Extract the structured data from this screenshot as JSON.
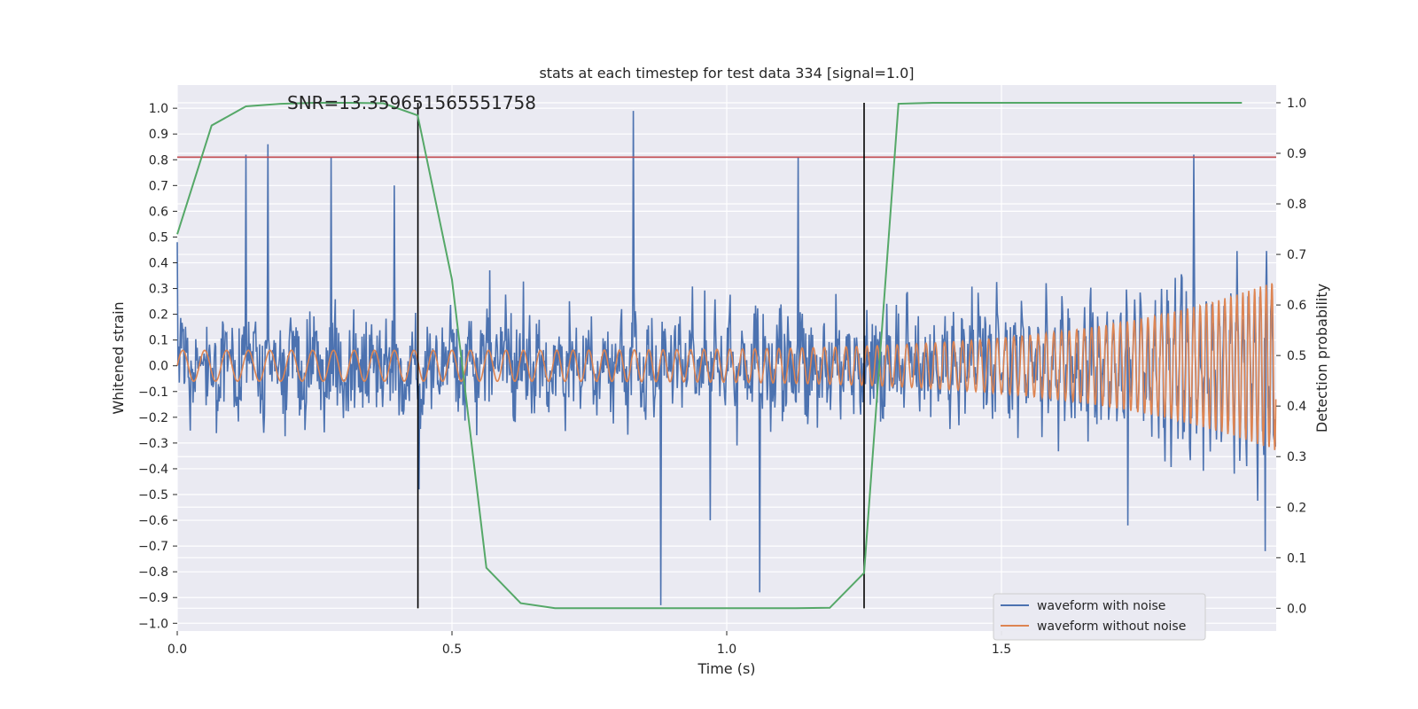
{
  "chart_data": {
    "type": "line",
    "title": "stats at each timestep for test data 334 [signal=1.0]",
    "xlabel": "Time (s)",
    "ylabel": "Whitened strain",
    "y2label": "Detection probability",
    "xlim": [
      0.0,
      2.0
    ],
    "ylim": [
      -1.03,
      1.09
    ],
    "y2lim": [
      -0.045,
      1.035
    ],
    "x_ticks": [
      "0.0",
      "0.5",
      "1.0",
      "1.5"
    ],
    "y_ticks": [
      "−1.0",
      "−0.9",
      "−0.8",
      "−0.7",
      "−0.6",
      "−0.5",
      "−0.4",
      "−0.3",
      "−0.2",
      "−0.1",
      "0.0",
      "0.1",
      "0.2",
      "0.3",
      "0.4",
      "0.5",
      "0.6",
      "0.7",
      "0.8",
      "0.9",
      "1.0"
    ],
    "y2_ticks": [
      "0.0",
      "0.1",
      "0.2",
      "0.3",
      "0.4",
      "0.5",
      "0.6",
      "0.7",
      "0.8",
      "0.9",
      "1.0"
    ],
    "grid": true,
    "legend_position": "lower-right",
    "annotation": "SNR=13.359651565551758",
    "threshold_y": 0.81,
    "vlines_x": [
      0.438,
      1.25
    ],
    "series": [
      {
        "name": "waveform with noise",
        "axis": "left",
        "color": "#4c72b0",
        "description": "noisy whitened strain sampled across 0-2 s, amplitude mostly within -0.6..0.7 with peaks near 1.0 at 0.83 s and -0.93 at 0.88 s",
        "x": [
          0.0,
          0.125,
          0.165,
          0.28,
          0.395,
          0.44,
          0.83,
          0.88,
          0.97,
          1.06,
          1.13,
          1.73,
          1.85,
          1.98
        ],
        "y": [
          0.48,
          0.82,
          0.86,
          0.81,
          0.7,
          -0.48,
          0.99,
          -0.93,
          -0.6,
          -0.88,
          0.81,
          -0.62,
          0.82,
          -0.72
        ]
      },
      {
        "name": "waveform without noise",
        "axis": "left",
        "color": "#dd8452",
        "description": "chirp: amplitude grows from ~0.06 to ~0.33, frequency rises toward 2 s",
        "x": [
          0.0,
          0.5,
          1.0,
          1.5,
          1.9,
          1.98
        ],
        "y": [
          0.06,
          0.065,
          0.08,
          0.11,
          0.22,
          0.33
        ]
      },
      {
        "name": "",
        "axis": "right",
        "color": "#55a868",
        "x": [
          0.0,
          0.0625,
          0.125,
          0.1875,
          0.25,
          0.3125,
          0.375,
          0.4375,
          0.5,
          0.5625,
          0.625,
          0.6875,
          0.75,
          0.8125,
          0.875,
          0.9375,
          1.0,
          1.0625,
          1.125,
          1.1875,
          1.25,
          1.3125,
          1.375,
          1.4375,
          1.5,
          1.5625,
          1.625,
          1.6875,
          1.75,
          1.8125,
          1.875,
          1.9375
        ],
        "y": [
          0.74,
          0.955,
          0.993,
          0.998,
          1.0,
          1.0,
          0.999,
          0.975,
          0.65,
          0.08,
          0.01,
          0.0,
          0.0,
          0.0,
          0.0,
          0.0,
          0.0,
          0.0,
          0.0,
          0.001,
          0.07,
          0.998,
          1.0,
          1.0,
          1.0,
          1.0,
          1.0,
          1.0,
          1.0,
          1.0,
          1.0,
          1.0
        ]
      }
    ]
  }
}
